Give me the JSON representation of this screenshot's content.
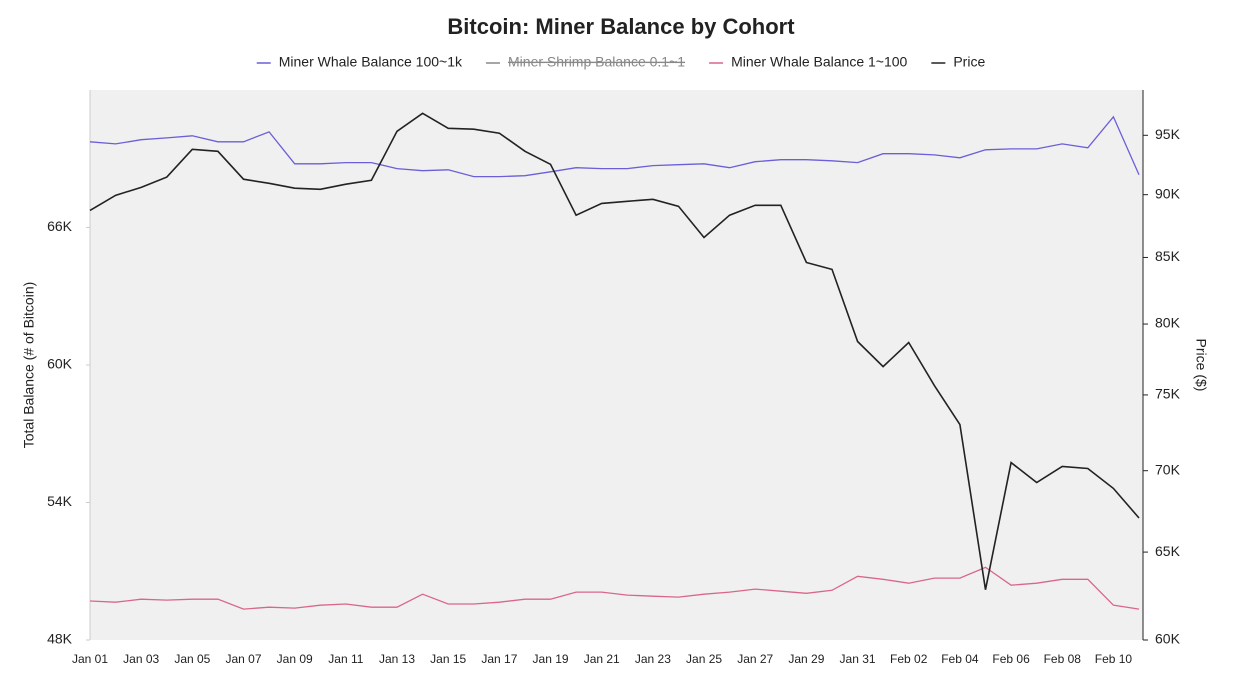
{
  "chart_data": {
    "type": "line",
    "title": "Bitcoin: Miner Balance by Cohort",
    "y_label": "Total Balance (# of Bitcoin)",
    "y2_label": "Price ($)",
    "categories": [
      "Jan 01",
      null,
      "Jan 03",
      null,
      "Jan 05",
      null,
      "Jan 07",
      null,
      "Jan 09",
      null,
      "Jan 11",
      null,
      "Jan 13",
      null,
      "Jan 15",
      null,
      "Jan 17",
      null,
      "Jan 19",
      null,
      "Jan 21",
      null,
      "Jan 23",
      null,
      "Jan 25",
      null,
      "Jan 27",
      null,
      "Jan 29",
      null,
      "Jan 31",
      null,
      "Feb 02",
      null,
      "Feb 04",
      null,
      "Feb 06",
      null,
      "Feb 08",
      null,
      "Feb 10",
      null
    ],
    "series": [
      {
        "name": "Miner Whale Balance 100~1k",
        "color": "#6a5fd8",
        "values": [
          69740,
          69650,
          69830,
          69910,
          70000,
          69740,
          69740,
          70170,
          68780,
          68780,
          68830,
          68830,
          68570,
          68480,
          68520,
          68220,
          68220,
          68260,
          68430,
          68610,
          68570,
          68570,
          68700,
          68740,
          68780,
          68610,
          68870,
          68960,
          68960,
          68910,
          68830,
          69220,
          69220,
          69170,
          69040,
          69390,
          69430,
          69430,
          69650,
          69480,
          70830,
          68300
        ]
      },
      {
        "name": "Miner Shrimp Balance 0.1~1",
        "color": "#888888",
        "hidden": true,
        "values": [
          null,
          null,
          null,
          null,
          null,
          null,
          null,
          null,
          null,
          null,
          null,
          null,
          null,
          null,
          null,
          null,
          null,
          null,
          null,
          null,
          null,
          null,
          null,
          null,
          null,
          null,
          null,
          null,
          null,
          null,
          null,
          null,
          null,
          null,
          null,
          null,
          null,
          null,
          null,
          null,
          null,
          null
        ]
      },
      {
        "name": "Miner Whale Balance 1~100",
        "color": "#d9678a",
        "values": [
          49700,
          49650,
          49780,
          49740,
          49780,
          49780,
          49350,
          49430,
          49390,
          49520,
          49570,
          49430,
          49430,
          50000,
          49570,
          49570,
          49650,
          49780,
          49780,
          50090,
          50090,
          49960,
          49910,
          49870,
          50000,
          50090,
          50220,
          50130,
          50040,
          50170,
          50780,
          50650,
          50480,
          50700,
          50700,
          51170,
          50390,
          50480,
          50650,
          50650,
          49520,
          49350
        ]
      },
      {
        "name": "Price",
        "color": "#222222",
        "axis": "y2",
        "values": [
          88720,
          89950,
          90600,
          91450,
          93800,
          93630,
          91280,
          90940,
          90530,
          90440,
          90860,
          91190,
          95350,
          96920,
          95610,
          95530,
          95180,
          93630,
          92520,
          88330,
          89290,
          89460,
          89620,
          89050,
          86560,
          88330,
          89130,
          89130,
          84610,
          84080,
          78740,
          76960,
          78670,
          75650,
          73010,
          62810,
          70520,
          69250,
          70270,
          70140,
          68880,
          67050
        ]
      }
    ],
    "ylim": [
      48000,
      72000
    ],
    "yticks": [
      {
        "value": 48000,
        "label": "48K"
      },
      {
        "value": 54000,
        "label": "54K"
      },
      {
        "value": 60000,
        "label": "60K"
      },
      {
        "value": 66000,
        "label": "66K"
      }
    ],
    "y2lim": [
      60000,
      99000
    ],
    "y2log": true,
    "y2ticks": [
      {
        "value": 60000,
        "label": "60K"
      },
      {
        "value": 65000,
        "label": "65K"
      },
      {
        "value": 70000,
        "label": "70K"
      },
      {
        "value": 75000,
        "label": "75K"
      },
      {
        "value": 80000,
        "label": "80K"
      },
      {
        "value": 85000,
        "label": "85K"
      },
      {
        "value": 90000,
        "label": "90K"
      },
      {
        "value": 95000,
        "label": "95K"
      }
    ],
    "legend": "top"
  }
}
